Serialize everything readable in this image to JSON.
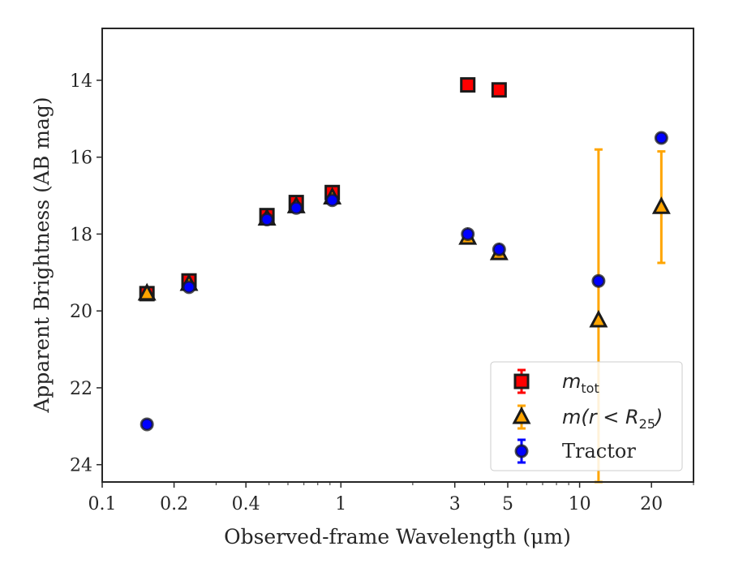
{
  "chart_data": {
    "type": "scatter",
    "xlabel": "Observed-frame Wavelength (μm)",
    "ylabel": "Apparent Brightness (AB mag)",
    "xscale": "log",
    "xlim": [
      0.1,
      30
    ],
    "ylim": [
      24.45,
      12.65
    ],
    "y_inverted": true,
    "xticks": [
      {
        "value": 0.1,
        "label": "0.1"
      },
      {
        "value": 0.2,
        "label": "0.2"
      },
      {
        "value": 0.4,
        "label": "0.4"
      },
      {
        "value": 1,
        "label": "1"
      },
      {
        "value": 3,
        "label": "3"
      },
      {
        "value": 5,
        "label": "5"
      },
      {
        "value": 10,
        "label": "10"
      },
      {
        "value": 20,
        "label": "20"
      }
    ],
    "yticks": [
      {
        "value": 14,
        "label": "14"
      },
      {
        "value": 16,
        "label": "16"
      },
      {
        "value": 18,
        "label": "18"
      },
      {
        "value": 20,
        "label": "20"
      },
      {
        "value": 22,
        "label": "22"
      },
      {
        "value": 24,
        "label": "24"
      }
    ],
    "legend_position": "bottom-right",
    "series": [
      {
        "key": "m_tot",
        "marker": "square",
        "color": "#ff0000",
        "errcolor": "#ff0000",
        "points": [
          {
            "x": 0.154,
            "y": 19.55,
            "err": 0.05
          },
          {
            "x": 0.231,
            "y": 19.22,
            "err": 0.05
          },
          {
            "x": 0.49,
            "y": 17.52,
            "err": 0.05
          },
          {
            "x": 0.65,
            "y": 17.18,
            "err": 0.05
          },
          {
            "x": 0.92,
            "y": 16.92,
            "err": 0.05
          },
          {
            "x": 3.4,
            "y": 14.12,
            "err": 0.05
          },
          {
            "x": 4.6,
            "y": 14.25,
            "err": 0.05
          }
        ]
      },
      {
        "key": "m_r_lt_R25",
        "marker": "triangle",
        "color": "#ffa500",
        "errcolor": "#ffa500",
        "points": [
          {
            "x": 0.154,
            "y": 19.55,
            "err": 0.05
          },
          {
            "x": 0.231,
            "y": 19.3,
            "err": 0.05
          },
          {
            "x": 0.49,
            "y": 17.6,
            "err": 0.05
          },
          {
            "x": 0.65,
            "y": 17.28,
            "err": 0.05
          },
          {
            "x": 0.92,
            "y": 17.05,
            "err": 0.05
          },
          {
            "x": 3.4,
            "y": 18.1,
            "err": 0.05
          },
          {
            "x": 4.6,
            "y": 18.5,
            "err": 0.05
          },
          {
            "x": 12.0,
            "y": 20.25,
            "err": 4.45
          },
          {
            "x": 22.0,
            "y": 17.3,
            "err": 1.45
          }
        ]
      },
      {
        "key": "tractor",
        "marker": "circle",
        "color": "#0000ff",
        "errcolor": "#0000ff",
        "points": [
          {
            "x": 0.154,
            "y": 22.95,
            "err": 0.05
          },
          {
            "x": 0.231,
            "y": 19.38,
            "err": 0.05
          },
          {
            "x": 0.49,
            "y": 17.62,
            "err": 0.05
          },
          {
            "x": 0.65,
            "y": 17.32,
            "err": 0.05
          },
          {
            "x": 0.92,
            "y": 17.12,
            "err": 0.05
          },
          {
            "x": 3.4,
            "y": 18.0,
            "err": 0.05
          },
          {
            "x": 4.6,
            "y": 18.4,
            "err": 0.05
          },
          {
            "x": 12.0,
            "y": 19.22,
            "err": 0.05
          },
          {
            "x": 22.0,
            "y": 15.5,
            "err": 0.05
          }
        ]
      }
    ],
    "legend": [
      {
        "series": "m_tot",
        "math": "m",
        "sub": "tot",
        "text": ""
      },
      {
        "series": "m_r_lt_R25",
        "math": "m(r < R",
        "sub": "25",
        "close": ")",
        "text": ""
      },
      {
        "series": "tractor",
        "math": "",
        "sub": "",
        "text": "Tractor"
      }
    ]
  }
}
